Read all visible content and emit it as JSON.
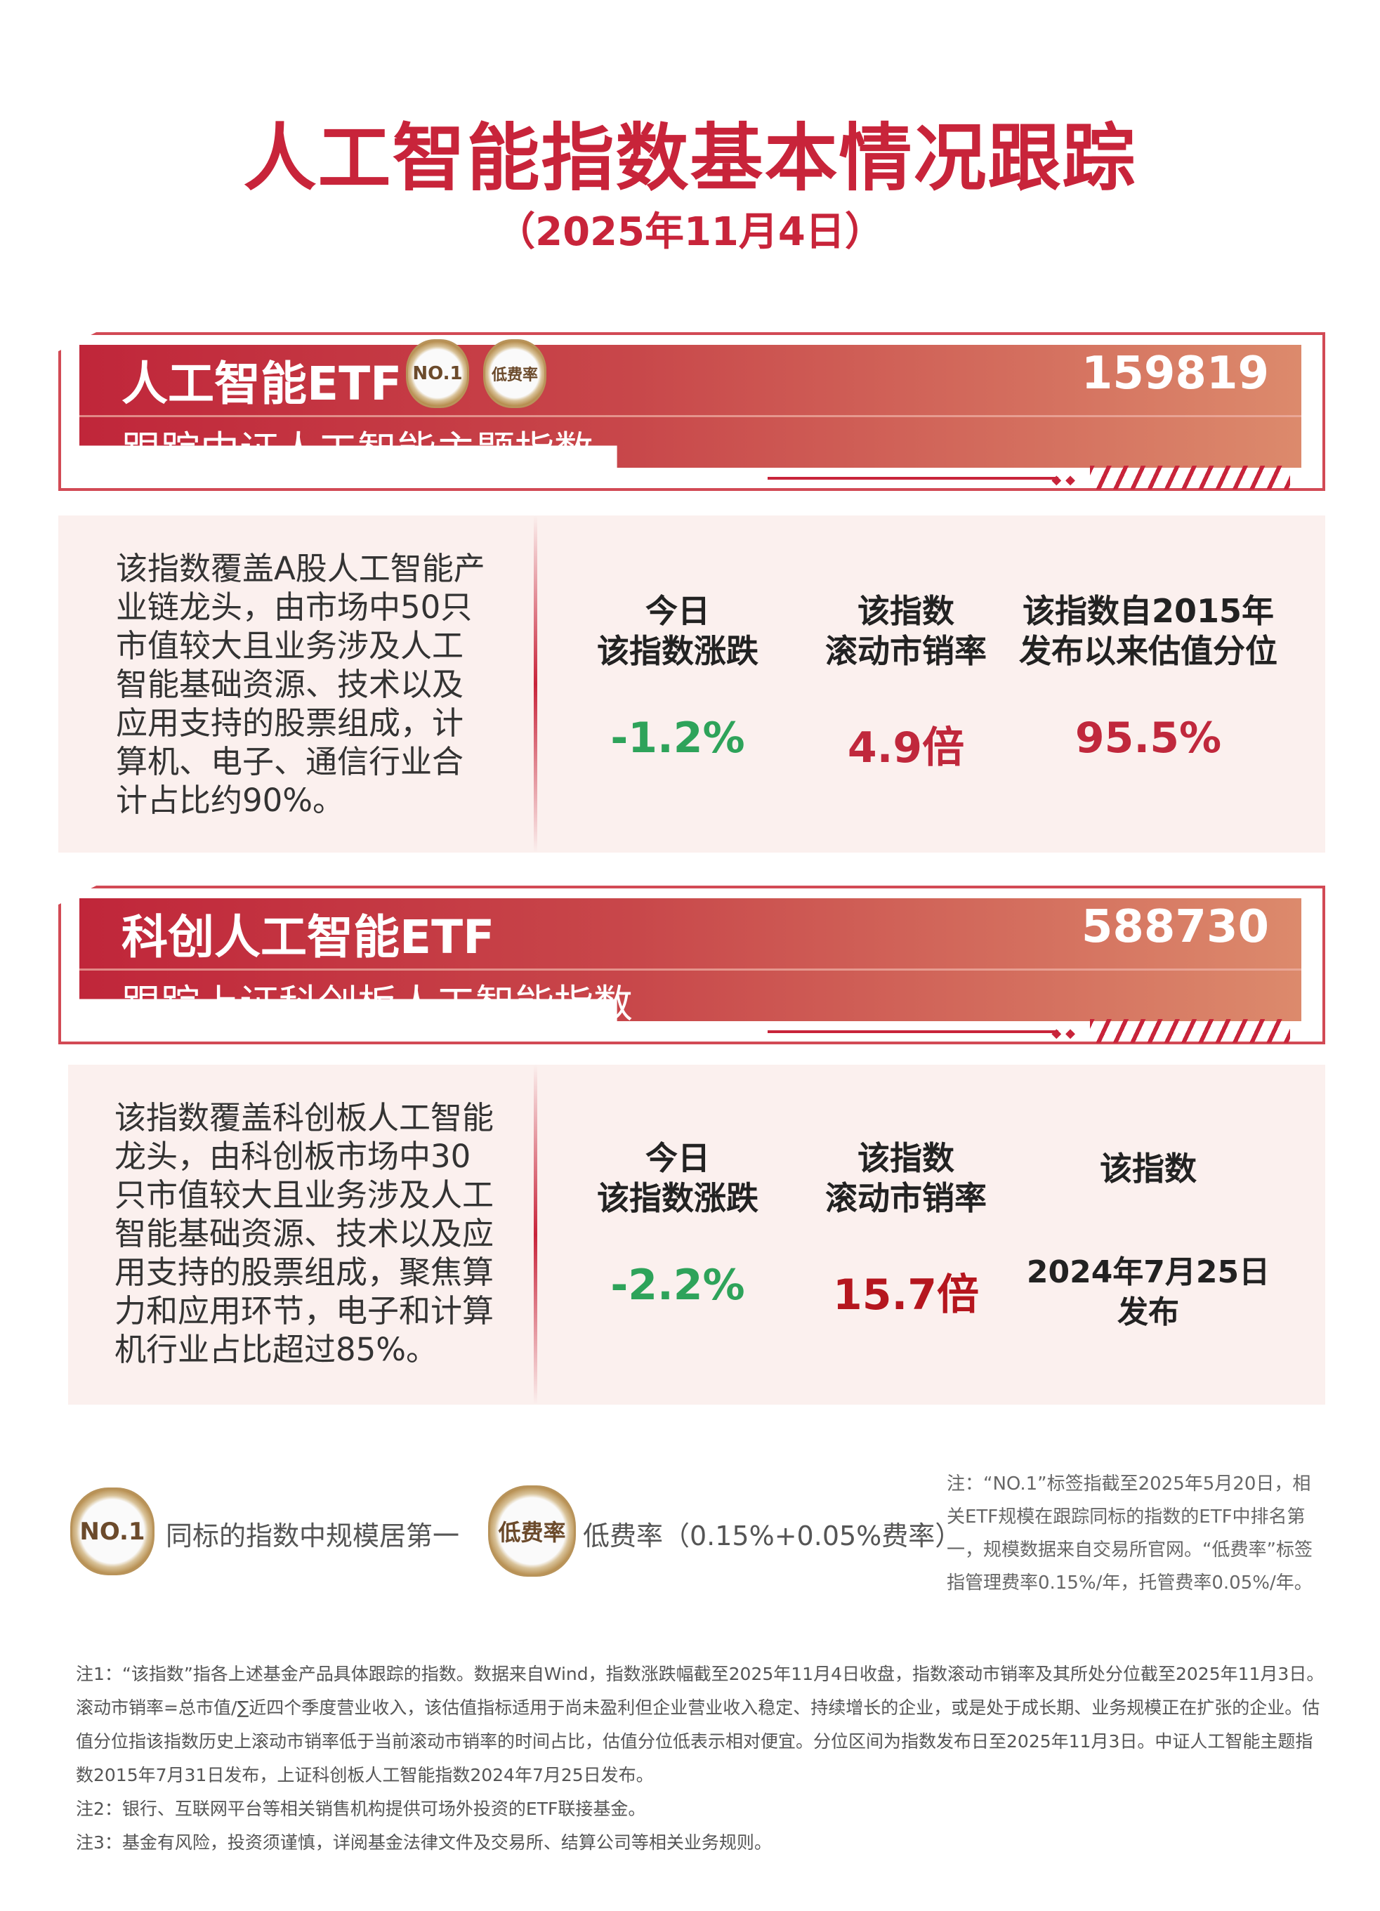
{
  "header": {
    "title": "人工智能指数基本情况跟踪",
    "date": "（2025年11月4日）"
  },
  "colors": {
    "accent": "#c8243a",
    "down": "#2ea35a",
    "valuation": "#c0283c",
    "valuation_strong": "#b5161e"
  },
  "funds": [
    {
      "name": "人工智能ETF",
      "code": "159819",
      "badges": [
        "NO.1",
        "低费率"
      ],
      "tracks": "跟踪中证人工智能主题指数",
      "description": "该指数覆盖A股人工智能产业链龙头，由市场中50只市值较大且业务涉及人工智能基础资源、技术以及应用支持的股票组成，计算机、电子、通信行业合计占比约90%。",
      "metrics": [
        {
          "label1": "今日",
          "label2": "该指数涨跌",
          "value": "-1.2%"
        },
        {
          "label1": "该指数",
          "label2": "滚动市销率",
          "value": "4.9倍"
        },
        {
          "label1": "该指数自2015年",
          "label2": "发布以来估值分位",
          "value": "95.5%"
        }
      ]
    },
    {
      "name": "科创人工智能ETF",
      "code": "588730",
      "tracks": "跟踪上证科创板人工智能指数",
      "description": "该指数覆盖科创板人工智能龙头，由科创板市场中30只市值较大且业务涉及人工智能基础资源、技术以及应用支持的股票组成，聚焦算力和应用环节，电子和计算机行业占比超过85%。",
      "metrics": [
        {
          "label1": "今日",
          "label2": "该指数涨跌",
          "value": "-2.2%"
        },
        {
          "label1": "该指数",
          "label2": "滚动市销率",
          "value": "15.7倍"
        },
        {
          "label1": "该指数",
          "label2": "",
          "value": "2024年7月25日",
          "value2": "发布"
        }
      ]
    }
  ],
  "legend": [
    {
      "badge": "NO.1",
      "text": "同标的指数中规模居第一"
    },
    {
      "badge": "低费率",
      "text": "低费率（0.15%+0.05%费率）"
    }
  ],
  "note_right": "注：“NO.1”标签指截至2025年5月20日，相关ETF规模在跟踪同标的指数的ETF中排名第一，规模数据来自交易所官网。“低费率”标签指管理费率0.15%/年，托管费率0.05%/年。",
  "footnotes": [
    "注1：“该指数”指各上述基金产品具体跟踪的指数。数据来自Wind，指数涨跌幅截至2025年11月4日收盘，指数滚动市销率及其所处分位截至2025年11月3日。滚动市销率=总市值/∑近四个季度营业收入，该估值指标适用于尚未盈利但企业营业收入稳定、持续增长的企业，或是处于成长期、业务规模正在扩张的企业。估值分位指该指数历史上滚动市销率低于当前滚动市销率的时间占比，估值分位低表示相对便宜。分位区间为指数发布日至2025年11月3日。中证人工智能主题指数2015年7月31日发布，上证科创板人工智能指数2024年7月25日发布。",
    "注2：银行、互联网平台等相关销售机构提供可场外投资的ETF联接基金。",
    "注3：基金有风险，投资须谨慎，详阅基金法律文件及交易所、结算公司等相关业务规则。"
  ]
}
